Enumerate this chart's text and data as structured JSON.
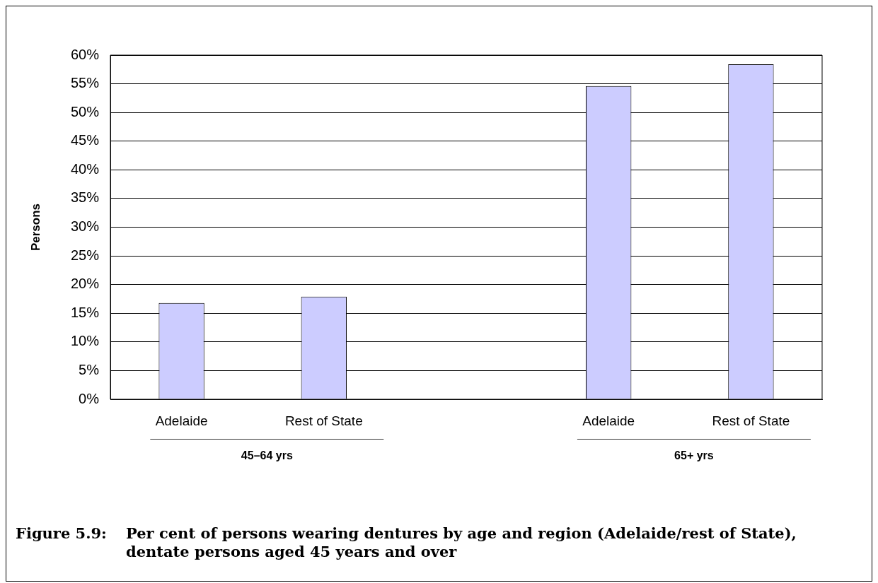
{
  "chart_data": {
    "type": "bar",
    "title": "Figure 5.9: Per cent of persons wearing dentures by age and region (Adelaide/rest of State), dentate persons aged 45 years and over",
    "ylabel": "Persons",
    "categories": [
      "Adelaide",
      "Rest of State",
      null,
      "Adelaide",
      "Rest of State"
    ],
    "values": [
      16.8,
      17.9,
      null,
      54.6,
      58.4
    ],
    "color": "#ccccff",
    "ylim": [
      0,
      60
    ],
    "yticks": [
      {
        "value": 0,
        "label": "0%"
      },
      {
        "value": 5,
        "label": "5%"
      },
      {
        "value": 10,
        "label": "10%"
      },
      {
        "value": 15,
        "label": "15%"
      },
      {
        "value": 20,
        "label": "20%"
      },
      {
        "value": 25,
        "label": "25%"
      },
      {
        "value": 30,
        "label": "30%"
      },
      {
        "value": 35,
        "label": "35%"
      },
      {
        "value": 40,
        "label": "40%"
      },
      {
        "value": 45,
        "label": "45%"
      },
      {
        "value": 50,
        "label": "50%"
      },
      {
        "value": 55,
        "label": "55%"
      },
      {
        "value": 60,
        "label": "60%"
      }
    ],
    "grid": "y",
    "annotations": [
      "45–64 yrs",
      "65+ yrs"
    ]
  }
}
